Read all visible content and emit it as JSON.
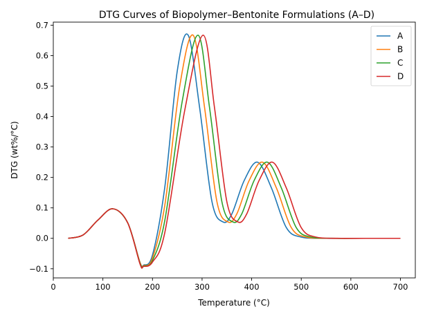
{
  "chart_data": {
    "type": "line",
    "title": "DTG Curves of Biopolymer–Bentonite Formulations (A–D)",
    "xlabel": "Temperature (°C)",
    "ylabel": "DTG (wt%/°C)",
    "xlim": [
      0,
      730
    ],
    "ylim": [
      -0.13,
      0.71
    ],
    "xticks": [
      0,
      100,
      200,
      300,
      400,
      500,
      600,
      700
    ],
    "yticks": [
      -0.1,
      0.0,
      0.1,
      0.2,
      0.3,
      0.4,
      0.5,
      0.6,
      0.7
    ],
    "legend_position": "top-right",
    "grid": false,
    "series": [
      {
        "name": "A",
        "color": "#1f77b4",
        "points": [
          [
            30,
            0.0
          ],
          [
            60,
            0.011
          ],
          [
            90,
            0.06
          ],
          [
            120,
            0.097
          ],
          [
            150,
            0.051
          ],
          [
            175,
            -0.08
          ],
          [
            182,
            -0.088
          ],
          [
            200,
            -0.055
          ],
          [
            225,
            0.17
          ],
          [
            250,
            0.55
          ],
          [
            272,
            0.667
          ],
          [
            295,
            0.43
          ],
          [
            320,
            0.12
          ],
          [
            342,
            0.054
          ],
          [
            360,
            0.08
          ],
          [
            385,
            0.19
          ],
          [
            412,
            0.25
          ],
          [
            440,
            0.165
          ],
          [
            470,
            0.035
          ],
          [
            500,
            0.004
          ],
          [
            550,
            0.0
          ],
          [
            600,
            0.0
          ],
          [
            700,
            0.0
          ]
        ]
      },
      {
        "name": "B",
        "color": "#ff7f0e",
        "points": [
          [
            30,
            0.0
          ],
          [
            60,
            0.011
          ],
          [
            90,
            0.06
          ],
          [
            120,
            0.097
          ],
          [
            150,
            0.051
          ],
          [
            175,
            -0.08
          ],
          [
            183,
            -0.089
          ],
          [
            200,
            -0.065
          ],
          [
            225,
            0.11
          ],
          [
            255,
            0.5
          ],
          [
            282,
            0.667
          ],
          [
            305,
            0.43
          ],
          [
            330,
            0.12
          ],
          [
            352,
            0.054
          ],
          [
            370,
            0.08
          ],
          [
            395,
            0.19
          ],
          [
            422,
            0.25
          ],
          [
            450,
            0.165
          ],
          [
            480,
            0.035
          ],
          [
            510,
            0.004
          ],
          [
            560,
            0.0
          ],
          [
            610,
            0.0
          ],
          [
            700,
            0.0
          ]
        ]
      },
      {
        "name": "C",
        "color": "#2ca02c",
        "points": [
          [
            30,
            0.0
          ],
          [
            60,
            0.011
          ],
          [
            90,
            0.06
          ],
          [
            120,
            0.097
          ],
          [
            150,
            0.051
          ],
          [
            175,
            -0.082
          ],
          [
            184,
            -0.09
          ],
          [
            200,
            -0.073
          ],
          [
            225,
            0.06
          ],
          [
            260,
            0.45
          ],
          [
            292,
            0.667
          ],
          [
            315,
            0.43
          ],
          [
            340,
            0.12
          ],
          [
            362,
            0.054
          ],
          [
            380,
            0.08
          ],
          [
            405,
            0.19
          ],
          [
            432,
            0.25
          ],
          [
            460,
            0.165
          ],
          [
            490,
            0.035
          ],
          [
            520,
            0.004
          ],
          [
            570,
            0.0
          ],
          [
            620,
            0.0
          ],
          [
            700,
            0.0
          ]
        ]
      },
      {
        "name": "D",
        "color": "#d62728",
        "points": [
          [
            30,
            0.0
          ],
          [
            60,
            0.011
          ],
          [
            90,
            0.06
          ],
          [
            120,
            0.097
          ],
          [
            150,
            0.051
          ],
          [
            175,
            -0.085
          ],
          [
            182,
            -0.092
          ],
          [
            200,
            -0.078
          ],
          [
            225,
            0.02
          ],
          [
            265,
            0.42
          ],
          [
            302,
            0.667
          ],
          [
            325,
            0.43
          ],
          [
            350,
            0.12
          ],
          [
            372,
            0.054
          ],
          [
            390,
            0.08
          ],
          [
            415,
            0.19
          ],
          [
            442,
            0.25
          ],
          [
            470,
            0.165
          ],
          [
            500,
            0.035
          ],
          [
            530,
            0.004
          ],
          [
            580,
            0.0
          ],
          [
            630,
            0.0
          ],
          [
            700,
            0.0
          ]
        ]
      }
    ]
  }
}
